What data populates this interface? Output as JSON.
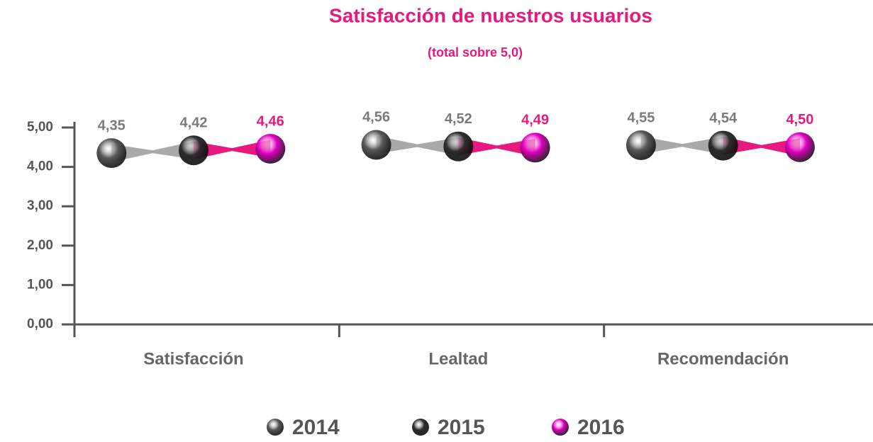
{
  "chart_data": {
    "type": "dot",
    "title": "Satisfacción de nuestros usuarios",
    "subtitle": "(total sobre 5,0)",
    "categories": [
      "Satisfacción",
      "Lealtad",
      "Recomendación"
    ],
    "series": [
      {
        "name": "2014",
        "color": "#5a5a5a",
        "values": [
          4.35,
          4.56,
          4.55
        ],
        "value_labels": [
          "4,35",
          "4,56",
          "4,55"
        ]
      },
      {
        "name": "2015",
        "color": "#2e2e2e",
        "values": [
          4.42,
          4.52,
          4.54
        ],
        "value_labels": [
          "4,42",
          "4,52",
          "4,54"
        ]
      },
      {
        "name": "2016",
        "color": "#e400c4",
        "values": [
          4.46,
          4.49,
          4.5
        ],
        "value_labels": [
          "4,46",
          "4,49",
          "4,50"
        ]
      }
    ],
    "ylim": [
      0,
      5
    ],
    "yticks": [
      {
        "value": 0,
        "label": "0,00"
      },
      {
        "value": 1,
        "label": "1,00"
      },
      {
        "value": 2,
        "label": "2,00"
      },
      {
        "value": 3,
        "label": "3,00"
      },
      {
        "value": 4,
        "label": "4,00"
      },
      {
        "value": 5,
        "label": "5,00"
      }
    ]
  }
}
